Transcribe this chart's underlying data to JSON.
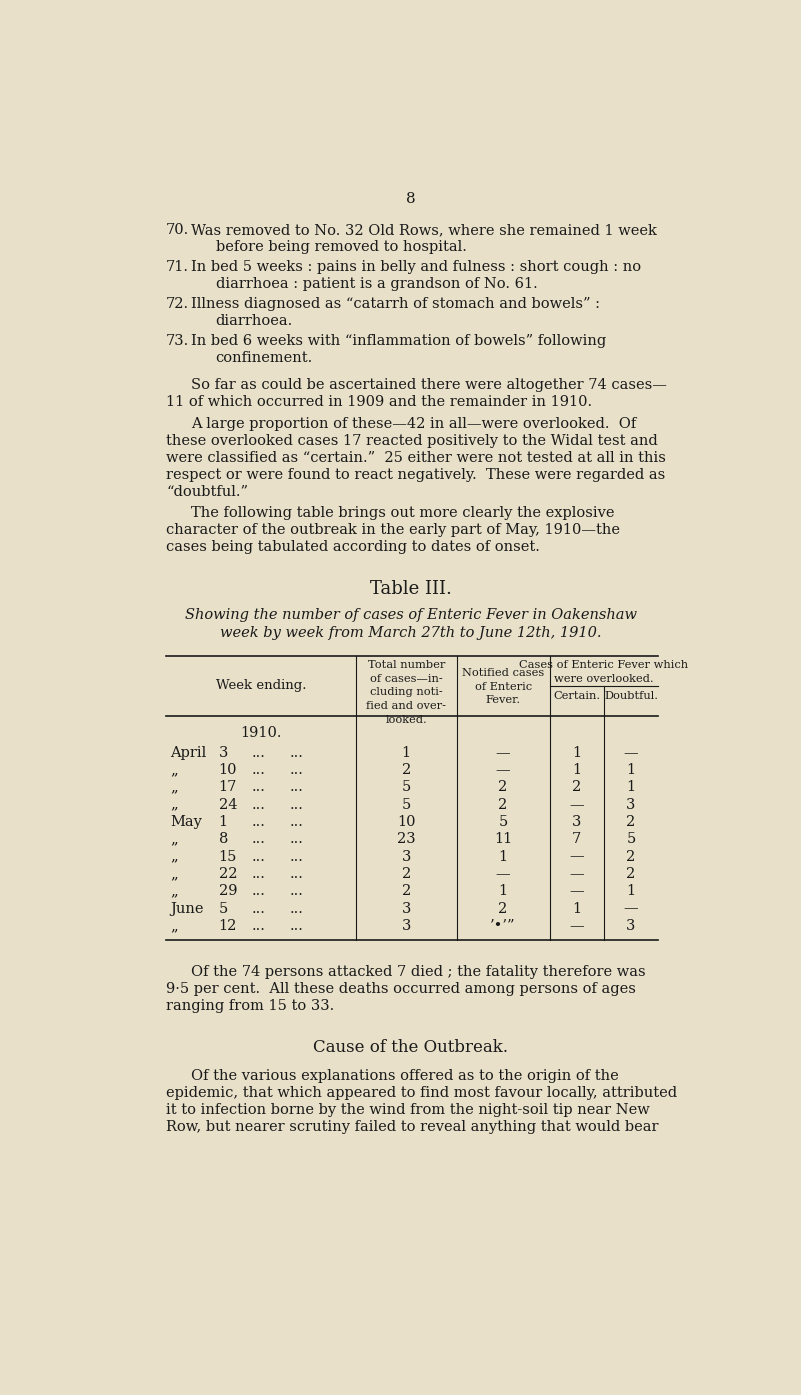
{
  "bg_color": "#e8e0c8",
  "text_color": "#1a1a1a",
  "page_number": "8",
  "table_title": "Table III.",
  "table_subtitle_line1": "Showing the number of cases of Enteric Fever in Oakenshaw",
  "table_subtitle_line2": "week by week from March 27th to June 12th, 1910.",
  "sub_headers": [
    "Certain.",
    "Doubtful."
  ],
  "year_label": "1910.",
  "table_data": [
    [
      "April",
      "3",
      "1",
      "—",
      "1",
      "—"
    ],
    [
      "„",
      "10",
      "2",
      "—",
      "1",
      "1"
    ],
    [
      "„",
      "17",
      "5",
      "2",
      "2",
      "1"
    ],
    [
      "„",
      "24",
      "5",
      "2",
      "—",
      "3"
    ],
    [
      "May",
      "1",
      "10",
      "5",
      "3",
      "2"
    ],
    [
      "„",
      "8",
      "23",
      "11",
      "7",
      "5"
    ],
    [
      "„",
      "15",
      "3",
      "1",
      "—",
      "2"
    ],
    [
      "„",
      "22",
      "2",
      "—",
      "—",
      "2"
    ],
    [
      "„",
      "29",
      "2",
      "1",
      "—",
      "1"
    ],
    [
      "June",
      "5",
      "3",
      "2",
      "1",
      "—"
    ],
    [
      "„",
      "12",
      "3",
      "’•’”",
      "—",
      "3"
    ]
  ],
  "section_title": "Cause of the Outbreak."
}
